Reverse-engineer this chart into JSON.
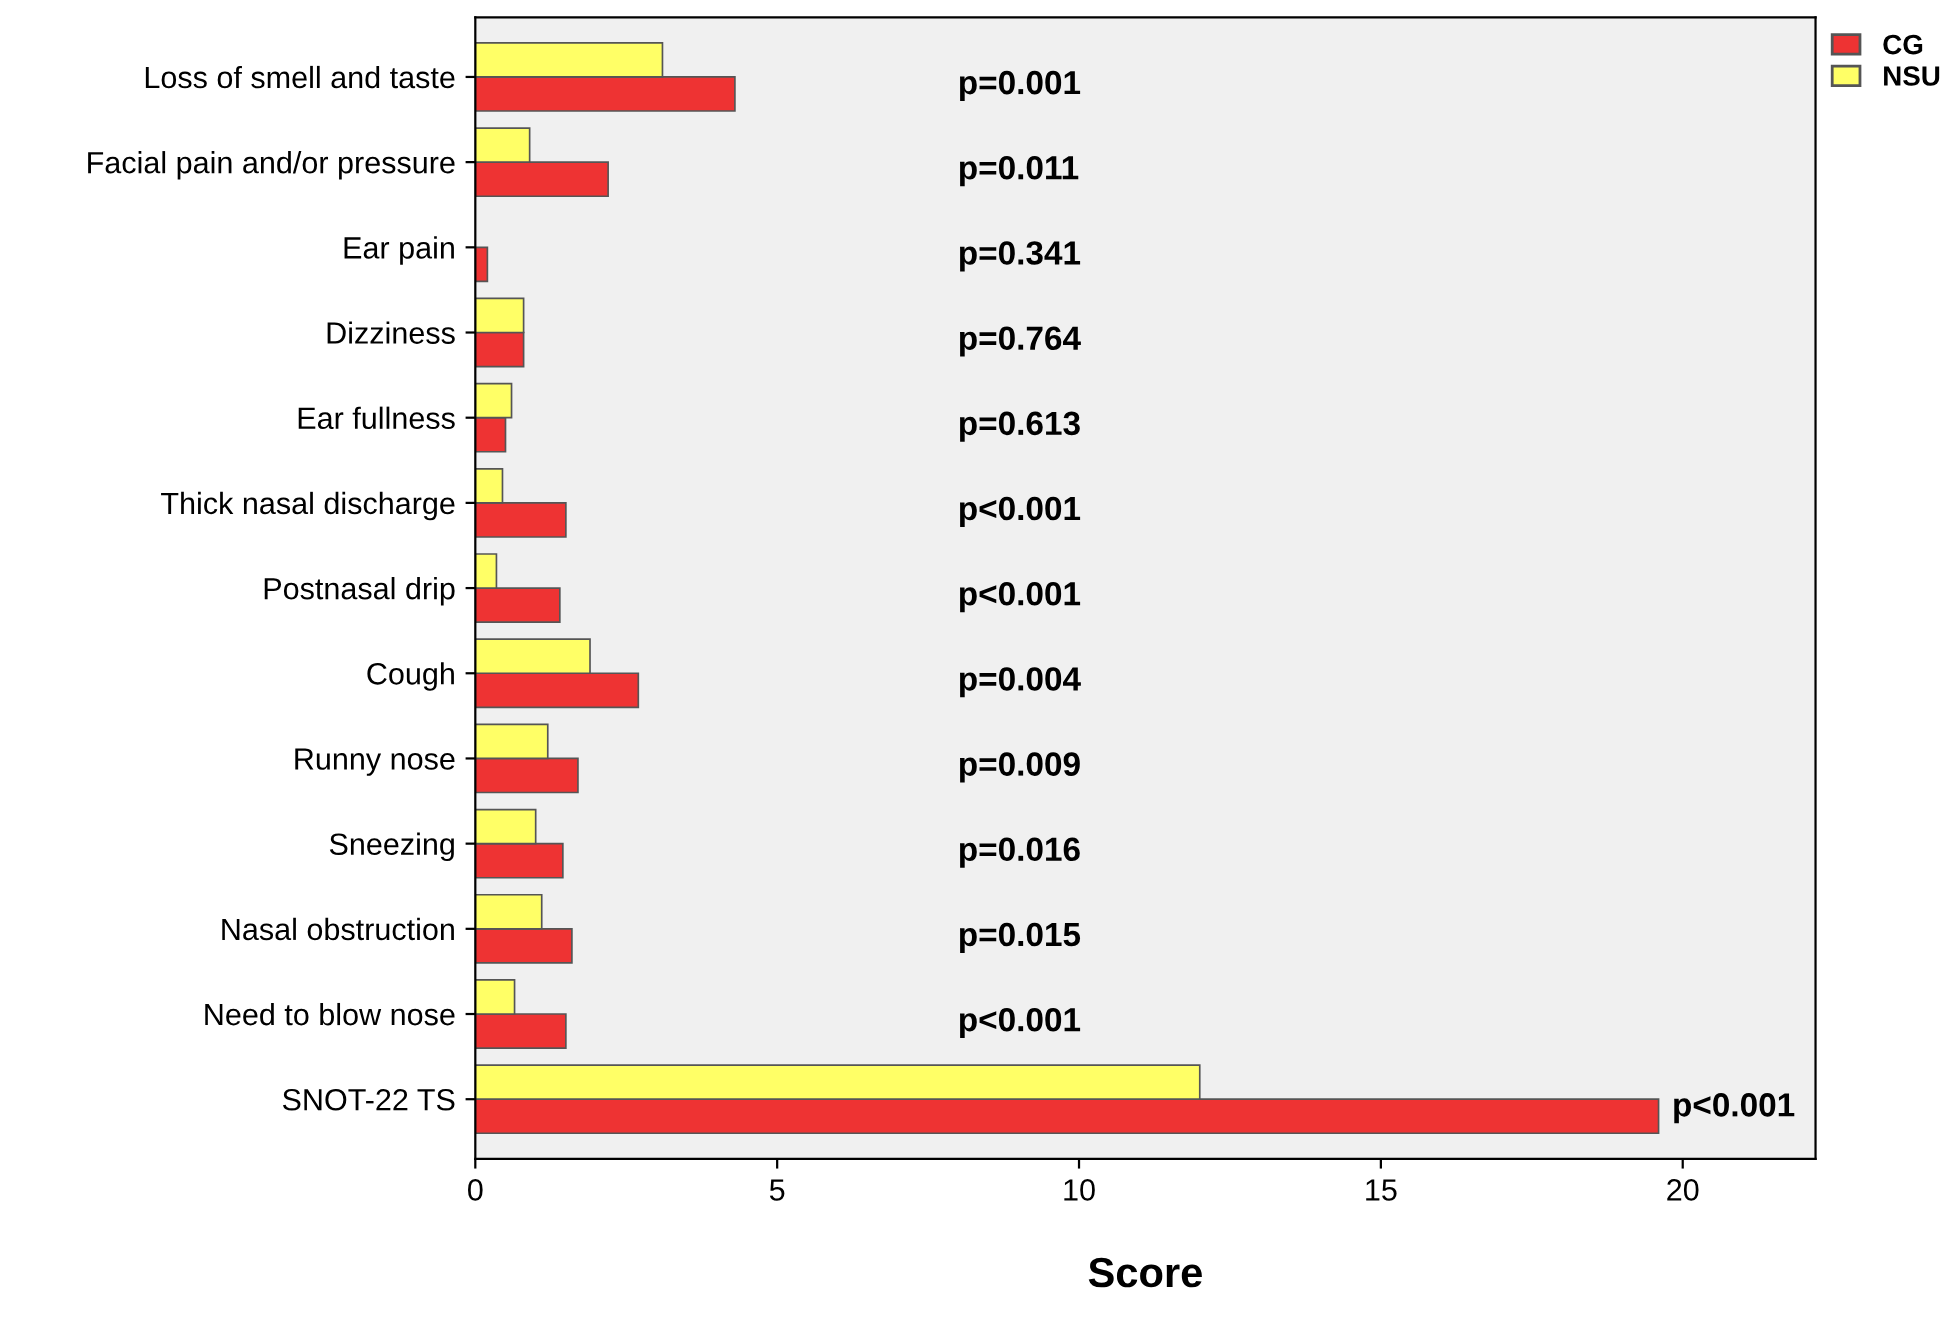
{
  "chart_data": {
    "type": "bar",
    "orientation": "horizontal",
    "xlabel": "Score",
    "categories": [
      "Loss of smell and taste",
      "Facial pain and/or pressure",
      "Ear pain",
      "Dizziness",
      "Ear fullness",
      "Thick nasal discharge",
      "Postnasal drip",
      "Cough",
      "Runny nose",
      "Sneezing",
      "Nasal obstruction",
      "Need to blow nose",
      "SNOT-22 TS"
    ],
    "series": [
      {
        "name": "CG",
        "color": "#ee3333",
        "values": [
          4.3,
          2.2,
          0.2,
          0.8,
          0.5,
          1.5,
          1.4,
          2.7,
          1.7,
          1.45,
          1.6,
          1.5,
          19.6
        ]
      },
      {
        "name": "NSU",
        "color": "#ffff66",
        "values": [
          3.1,
          0.9,
          null,
          0.8,
          0.6,
          0.45,
          0.35,
          1.9,
          1.2,
          1.0,
          1.1,
          0.65,
          12.0
        ]
      }
    ],
    "xlim": [
      0,
      22.2
    ],
    "xticks": [
      0,
      5,
      10,
      15,
      20
    ],
    "grid": false,
    "legend": "top right",
    "annotations": [
      "p=0.001",
      "p=0.011",
      "p=0.341",
      "p=0.764",
      "p=0.613",
      "p<0.001",
      "p<0.001",
      "p=0.004",
      "p=0.009",
      "p=0.016",
      "p=0.015",
      "p<0.001",
      "p<0.001"
    ]
  }
}
